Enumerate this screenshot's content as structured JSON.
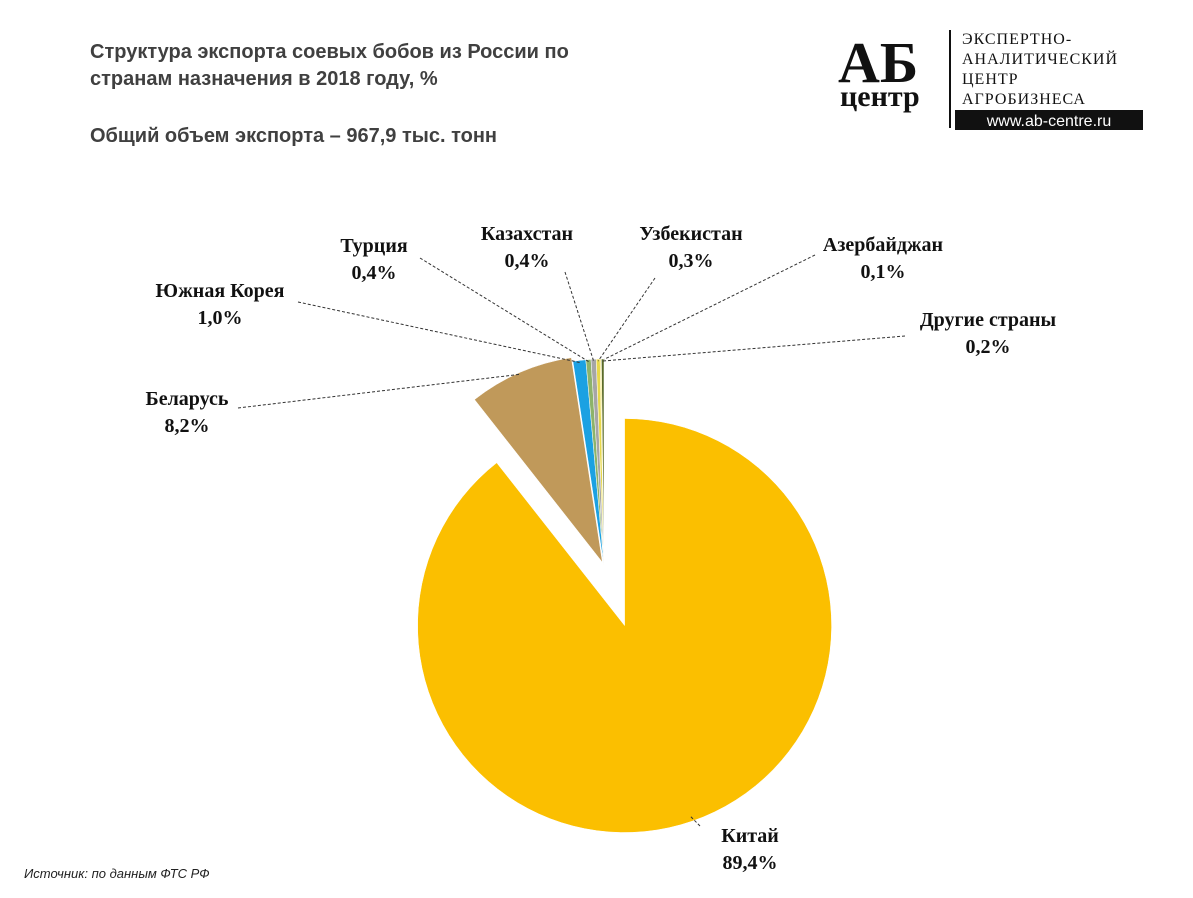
{
  "chart_data": {
    "type": "pie",
    "title": "Структура экспорта соевых бобов из России по странам назначения в 2018 году, %",
    "subtitle": "Общий объем экспорта – 967,9 тыс. тонн",
    "source": "Источник: по данным ФТС РФ",
    "categories": [
      "Китай",
      "Беларусь",
      "Южная Корея",
      "Турция",
      "Казахстан",
      "Узбекистан",
      "Азербайджан",
      "Другие страны"
    ],
    "values": [
      89.4,
      8.2,
      1.0,
      0.4,
      0.4,
      0.3,
      0.1,
      0.2
    ],
    "value_labels": [
      "89,4%",
      "8,2%",
      "1,0%",
      "0,4%",
      "0,4%",
      "0,3%",
      "0,1%",
      "0,2%"
    ],
    "colors": [
      "#fbbf00",
      "#c0995a",
      "#1ba1e2",
      "#8db36a",
      "#a6a6a6",
      "#e8d84a",
      "#f5e66e",
      "#5a6b2a"
    ]
  },
  "logo": {
    "mark": "АБ",
    "mark_sub": "центр",
    "lines": [
      "ЭКСПЕРТНО-",
      "АНАЛИТИЧЕСКИЙ",
      "ЦЕНТР",
      "АГРОБИЗНЕСА"
    ],
    "url": "www.ab-centre.ru"
  }
}
